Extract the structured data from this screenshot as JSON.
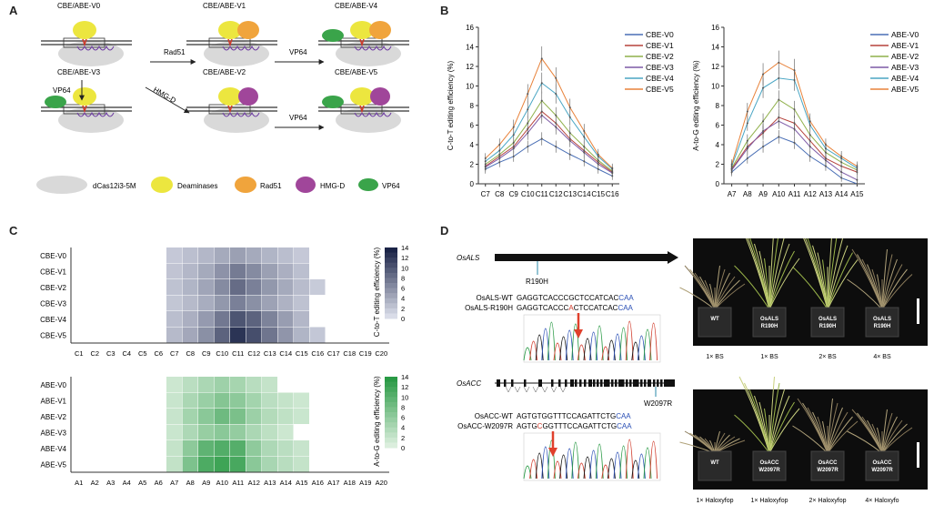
{
  "panel_labels": {
    "a": "A",
    "b": "B",
    "c": "C",
    "d": "D"
  },
  "panel_a": {
    "constructs": [
      "CBE/ABE-V0",
      "CBE/ABE-V1",
      "CBE/ABE-V4",
      "CBE/ABE-V3",
      "CBE/ABE-V2",
      "CBE/ABE-V5"
    ],
    "arrows": {
      "rad51": "Rad51",
      "vp64_top": "VP64",
      "vp64_left": "VP64",
      "hmgd": "HMG-D",
      "vp64_mid": "VP64"
    },
    "legend": [
      "dCas12i3-5M",
      "Deaminases",
      "Rad51",
      "HMG-D",
      "VP64"
    ],
    "colors": {
      "dcas": "#d9d9d9",
      "deaminase": "#ece63f",
      "rad51": "#f0a43c",
      "hmgd": "#a0469a",
      "vp64": "#3aa44a"
    }
  },
  "chart_data": [
    {
      "type": "line",
      "ylabel": "C-to-T editing efficiency (%)",
      "categories": [
        "C7",
        "C8",
        "C9",
        "C10",
        "C11",
        "C12",
        "C13",
        "C14",
        "C15",
        "C16"
      ],
      "ylim": [
        0,
        16
      ],
      "yticks": [
        0,
        2,
        4,
        6,
        8,
        10,
        12,
        14,
        16
      ],
      "legend_position": "top-right",
      "series": [
        {
          "name": "CBE-V0",
          "color": "#4a6fb5",
          "values": [
            1.5,
            2.2,
            2.8,
            3.8,
            4.6,
            3.8,
            3.0,
            2.3,
            1.5,
            0.8
          ]
        },
        {
          "name": "CBE-V1",
          "color": "#b5423c",
          "values": [
            1.8,
            2.8,
            3.8,
            5.6,
            7.4,
            6.2,
            4.6,
            3.4,
            2.2,
            1.2
          ]
        },
        {
          "name": "CBE-V2",
          "color": "#8fb04a",
          "values": [
            2.0,
            3.0,
            4.2,
            6.2,
            8.5,
            7.0,
            5.2,
            3.8,
            2.4,
            1.3
          ]
        },
        {
          "name": "CBE-V3",
          "color": "#7d5aa6",
          "values": [
            1.7,
            2.6,
            3.6,
            5.2,
            7.0,
            5.8,
            4.4,
            3.2,
            2.0,
            1.1
          ]
        },
        {
          "name": "CBE-V4",
          "color": "#4aa6c4",
          "values": [
            2.3,
            3.4,
            5.0,
            7.6,
            10.3,
            9.2,
            6.8,
            4.8,
            2.8,
            1.5
          ]
        },
        {
          "name": "CBE-V5",
          "color": "#e8823a",
          "values": [
            2.6,
            4.0,
            5.8,
            9.2,
            12.8,
            10.8,
            7.8,
            5.4,
            3.0,
            1.6
          ]
        }
      ]
    },
    {
      "type": "line",
      "ylabel": "A-to-G editing efficiency (%)",
      "categories": [
        "A7",
        "A8",
        "A9",
        "A10",
        "A11",
        "A12",
        "A13",
        "A14",
        "A15"
      ],
      "ylim": [
        0,
        16
      ],
      "yticks": [
        0,
        2,
        4,
        6,
        8,
        10,
        12,
        14,
        16
      ],
      "legend_position": "top-right",
      "series": [
        {
          "name": "ABE-V0",
          "color": "#4a6fb5",
          "values": [
            1.2,
            2.6,
            3.8,
            4.8,
            4.2,
            2.8,
            1.8,
            0.6,
            0.0
          ]
        },
        {
          "name": "ABE-V1",
          "color": "#b5423c",
          "values": [
            1.5,
            3.8,
            5.2,
            6.8,
            6.2,
            4.4,
            2.6,
            1.8,
            1.2
          ]
        },
        {
          "name": "ABE-V2",
          "color": "#8fb04a",
          "values": [
            1.6,
            4.4,
            6.4,
            8.6,
            7.6,
            5.0,
            3.2,
            2.2,
            1.4
          ]
        },
        {
          "name": "ABE-V3",
          "color": "#7d5aa6",
          "values": [
            1.4,
            3.6,
            5.4,
            6.4,
            5.6,
            3.8,
            2.4,
            1.2,
            0.4
          ]
        },
        {
          "name": "ABE-V4",
          "color": "#4aa6c4",
          "values": [
            1.8,
            6.2,
            9.8,
            10.8,
            10.6,
            6.0,
            3.6,
            2.6,
            1.6
          ]
        },
        {
          "name": "ABE-V5",
          "color": "#e8823a",
          "values": [
            2.0,
            7.4,
            11.2,
            12.4,
            11.6,
            6.4,
            4.0,
            2.8,
            1.8
          ]
        }
      ]
    },
    {
      "type": "heatmap",
      "ylabel": "C-to-T editing efficiency (%)",
      "rows": [
        "CBE-V0",
        "CBE-V1",
        "CBE-V2",
        "CBE-V3",
        "CBE-V4",
        "CBE-V5"
      ],
      "columns": [
        "C1",
        "C2",
        "C3",
        "C4",
        "C5",
        "C6",
        "C7",
        "C8",
        "C9",
        "C10",
        "C11",
        "C12",
        "C13",
        "C14",
        "C15",
        "C16",
        "C17",
        "C18",
        "C19",
        "C20"
      ],
      "colorbar_ticks": [
        0,
        2,
        4,
        6,
        8,
        10,
        12,
        14
      ],
      "color_low": "#d9dce8",
      "color_high": "#1b2447",
      "values": [
        [
          null,
          null,
          null,
          null,
          null,
          null,
          1.5,
          2.2,
          2.8,
          3.8,
          4.6,
          3.8,
          3.0,
          2.3,
          1.5,
          null,
          null,
          null,
          null,
          null
        ],
        [
          null,
          null,
          null,
          null,
          null,
          null,
          1.8,
          2.8,
          3.8,
          5.6,
          7.4,
          6.2,
          4.6,
          3.4,
          2.2,
          null,
          null,
          null,
          null,
          null
        ],
        [
          null,
          null,
          null,
          null,
          null,
          null,
          2.0,
          3.0,
          4.2,
          6.2,
          8.5,
          7.0,
          5.2,
          3.8,
          2.4,
          1.3,
          null,
          null,
          null,
          null
        ],
        [
          null,
          null,
          null,
          null,
          null,
          null,
          1.7,
          2.6,
          3.6,
          5.2,
          7.0,
          5.8,
          4.4,
          3.2,
          2.0,
          null,
          null,
          null,
          null,
          null
        ],
        [
          null,
          null,
          null,
          null,
          null,
          null,
          2.3,
          3.4,
          5.0,
          7.6,
          10.3,
          9.2,
          6.8,
          4.8,
          2.8,
          null,
          null,
          null,
          null,
          null
        ],
        [
          null,
          null,
          null,
          null,
          null,
          null,
          2.6,
          4.0,
          5.8,
          9.2,
          12.8,
          10.8,
          7.8,
          5.4,
          3.0,
          1.6,
          null,
          null,
          null,
          null
        ]
      ]
    },
    {
      "type": "heatmap",
      "ylabel": "A-to-G editing efficiency (%)",
      "rows": [
        "ABE-V0",
        "ABE-V1",
        "ABE-V2",
        "ABE-V3",
        "ABE-V4",
        "ABE-V5"
      ],
      "columns": [
        "A1",
        "A2",
        "A3",
        "A4",
        "A5",
        "A6",
        "A7",
        "A8",
        "A9",
        "A10",
        "A11",
        "A12",
        "A13",
        "A14",
        "A15",
        "A16",
        "A17",
        "A18",
        "A19",
        "A20"
      ],
      "colorbar_ticks": [
        0,
        2,
        4,
        6,
        8,
        10,
        12,
        14
      ],
      "color_low": "#dbeedd",
      "color_high": "#2a9a45",
      "values": [
        [
          null,
          null,
          null,
          null,
          null,
          null,
          1.2,
          2.6,
          3.8,
          4.8,
          4.2,
          2.8,
          1.8,
          null,
          null,
          null,
          null,
          null,
          null,
          null
        ],
        [
          null,
          null,
          null,
          null,
          null,
          null,
          1.5,
          3.8,
          5.2,
          6.8,
          6.2,
          4.4,
          2.6,
          1.8,
          1.2,
          null,
          null,
          null,
          null,
          null
        ],
        [
          null,
          null,
          null,
          null,
          null,
          null,
          1.6,
          4.4,
          6.4,
          8.6,
          7.6,
          5.0,
          3.2,
          2.2,
          1.4,
          null,
          null,
          null,
          null,
          null
        ],
        [
          null,
          null,
          null,
          null,
          null,
          null,
          1.4,
          3.6,
          5.4,
          6.4,
          5.6,
          3.8,
          2.4,
          1.2,
          null,
          null,
          null,
          null,
          null,
          null
        ],
        [
          null,
          null,
          null,
          null,
          null,
          null,
          1.8,
          6.2,
          9.8,
          10.8,
          10.6,
          6.0,
          3.6,
          2.6,
          1.6,
          null,
          null,
          null,
          null,
          null
        ],
        [
          null,
          null,
          null,
          null,
          null,
          null,
          2.0,
          7.4,
          11.2,
          12.4,
          11.6,
          6.4,
          4.0,
          2.8,
          1.8,
          null,
          null,
          null,
          null,
          null
        ]
      ]
    }
  ],
  "panel_d": {
    "als": {
      "gene": "OsALS",
      "mutation": "R190H",
      "seq_wt_label": "OsALS-WT",
      "seq_wt_black": "GAGGTCACCCGCTCCATCAC",
      "seq_wt_pam": "CAA",
      "seq_mut_label": "OsALS-R190H",
      "seq_mut_pre": "GAGGTCACCC",
      "seq_mut_edit": "A",
      "seq_mut_post": "CTCCATCAC",
      "seq_mut_pam": "CAA",
      "pots": [
        "WT",
        "OsALS\nR190H",
        "OsALS\nR190H",
        "OsALS\nR190H"
      ],
      "pot_labels": [
        "WT",
        "OsALS R190H",
        "OsALS R190H",
        "OsALS R190H"
      ],
      "conditions": [
        "1× BS",
        "1× BS",
        "2× BS",
        "4× BS"
      ]
    },
    "acc": {
      "gene": "OsACC",
      "mutation": "W2097R",
      "seq_wt_label": "OsACC-WT",
      "seq_wt_black": "AGTGTGGTTTCCAGATTCTG",
      "seq_wt_pam": "CAA",
      "seq_mut_label": "OsACC-W2097R",
      "seq_mut_pre": "AGTG",
      "seq_mut_edit": "C",
      "seq_mut_post": "GGTTTCCAGATTCTG",
      "seq_mut_pam": "CAA",
      "pot_labels": [
        "WT",
        "OsACC W2097R",
        "OsACC W2097R",
        "OsACC W2097R"
      ],
      "conditions": [
        "1× Haloxyfop",
        "1× Haloxyfop",
        "2× Haloxyfop",
        "4× Haloxyfo"
      ]
    }
  }
}
